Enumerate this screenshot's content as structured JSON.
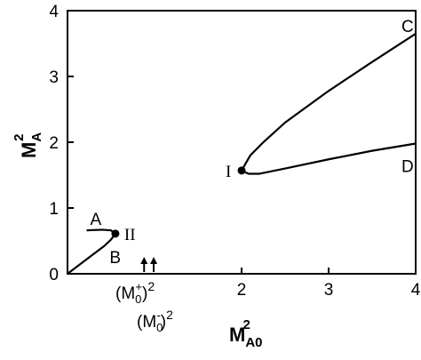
{
  "chart_data": {
    "type": "line",
    "xlabel": [
      "M",
      "A0",
      "2"
    ],
    "ylabel": [
      "M",
      "A",
      "2"
    ],
    "xlim": [
      0,
      4
    ],
    "ylim": [
      0,
      4
    ],
    "xticks": [
      2,
      3,
      4
    ],
    "yticks": [
      0,
      1,
      2,
      3,
      4
    ],
    "color": "#000000",
    "series": [
      {
        "label": "C",
        "x": [
          2.0,
          2.1,
          2.25,
          2.5,
          3.0,
          3.5,
          4.0
        ],
        "y": [
          1.57,
          1.8,
          2.0,
          2.3,
          2.78,
          3.22,
          3.65
        ]
      },
      {
        "label": "D",
        "x": [
          2.0,
          2.08,
          2.2,
          2.5,
          3.0,
          3.5,
          4.0
        ],
        "y": [
          1.57,
          1.52,
          1.52,
          1.6,
          1.74,
          1.87,
          1.98
        ]
      },
      {
        "label": "A",
        "x": [
          0.22,
          0.4,
          0.5,
          0.55
        ],
        "y": [
          0.66,
          0.67,
          0.66,
          0.61
        ]
      },
      {
        "label": "B",
        "x": [
          0.0,
          0.15,
          0.3,
          0.42,
          0.5,
          0.55
        ],
        "y": [
          0.0,
          0.15,
          0.3,
          0.42,
          0.52,
          0.61
        ]
      }
    ],
    "points": [
      {
        "label": "I",
        "x": 2.0,
        "y": 1.57
      },
      {
        "label": "II",
        "x": 0.55,
        "y": 0.61
      }
    ],
    "arrows": [
      {
        "x": 0.88,
        "label": [
          "(M",
          "0",
          "+",
          ")",
          "2"
        ]
      },
      {
        "x": 0.99,
        "label": [
          "(M",
          "0",
          "-",
          ")",
          "2"
        ]
      }
    ]
  }
}
